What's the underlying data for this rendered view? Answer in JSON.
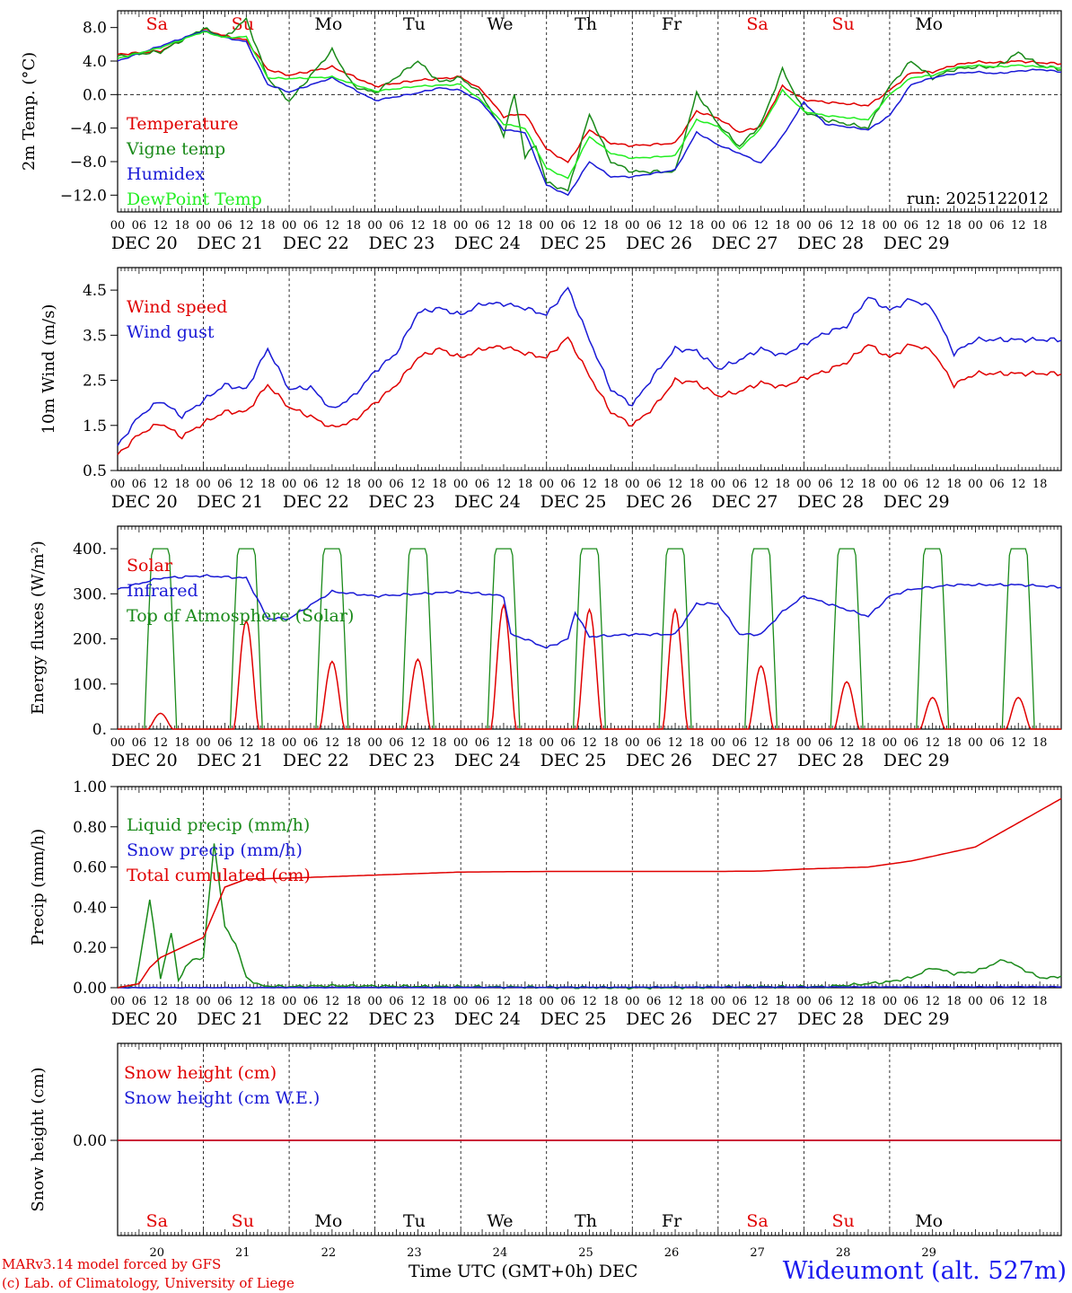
{
  "days": {
    "weekdays": [
      "Sa",
      "Su",
      "Mo",
      "Tu",
      "We",
      "Th",
      "Fr",
      "Sa",
      "Su",
      "Mo"
    ],
    "weekday_colors": [
      "#e00000",
      "#e00000",
      "#000000",
      "#000000",
      "#000000",
      "#000000",
      "#000000",
      "#e00000",
      "#e00000",
      "#000000"
    ],
    "dates": [
      "DEC 20",
      "DEC 21",
      "DEC 22",
      "DEC 23",
      "DEC 24",
      "DEC 25",
      "DEC 26",
      "DEC 27",
      "DEC 28",
      "DEC 29"
    ],
    "day_numbers": [
      "20",
      "21",
      "22",
      "23",
      "24",
      "25",
      "26",
      "27",
      "28",
      "29"
    ],
    "hour_ticks": [
      "00",
      "06",
      "12",
      "18"
    ],
    "final_tick": "00"
  },
  "footer": {
    "credit_line1": "MARv3.14 model forced by GFS",
    "credit_line2": "(c) Lab. of Climatology, University of Liege",
    "x_axis_title": "Time UTC (GMT+0h) DEC",
    "station": "Wideumont (alt. 527m)"
  },
  "colors": {
    "red": "#e00000",
    "green": "#1a8a1a",
    "blue": "#1a1ad6",
    "lightgreen": "#22ee22",
    "black": "#000000"
  },
  "chart_data": [
    {
      "type": "line",
      "id": "temperature",
      "ylabel": "2m Temp. (°C)",
      "ylim": [
        -14,
        10
      ],
      "yticks": [
        -12,
        -8,
        -4,
        0,
        4,
        8
      ],
      "ytick_labels": [
        "−12.0",
        "−8.0",
        "−4.0",
        "0.0",
        "4.0",
        "8.0"
      ],
      "zero_line": true,
      "run_label": "run: 2025122012",
      "x_unit": "hours since DEC 20 00 UTC",
      "series": [
        {
          "name": "Temperature",
          "color": "red",
          "x": [
            0,
            12,
            24,
            30,
            36,
            42,
            48,
            60,
            72,
            84,
            96,
            102,
            108,
            114,
            120,
            126,
            132,
            138,
            144,
            156,
            162,
            168,
            174,
            180,
            186,
            192,
            198,
            210,
            216,
            222,
            228,
            234,
            240,
            246,
            252,
            258,
            264
          ],
          "values": [
            4.8,
            5.2,
            7.8,
            7.0,
            6.5,
            3.0,
            2.3,
            3.3,
            1.0,
            1.7,
            2.1,
            0.5,
            -2.6,
            -2.3,
            -6.5,
            -8.1,
            -4.2,
            -5.8,
            -6.1,
            -5.8,
            -2.0,
            -2.8,
            -4.5,
            -3.8,
            1.0,
            -0.6,
            -0.9,
            -1.3,
            0.5,
            2.6,
            2.7,
            3.5,
            3.9,
            3.8,
            4.0,
            3.8,
            3.7
          ]
        },
        {
          "name": "Vigne temp",
          "color": "green",
          "x": [
            0,
            12,
            24,
            30,
            36,
            42,
            48,
            60,
            66,
            72,
            84,
            90,
            96,
            102,
            108,
            111,
            114,
            117,
            120,
            126,
            132,
            138,
            144,
            156,
            162,
            168,
            174,
            180,
            186,
            192,
            198,
            210,
            216,
            222,
            228,
            234,
            240,
            246,
            252,
            258,
            264
          ],
          "values": [
            4.6,
            5.1,
            7.9,
            6.8,
            9.0,
            2.0,
            -0.8,
            5.3,
            1.0,
            0.2,
            4.0,
            1.5,
            2.0,
            0.0,
            -4.8,
            0.0,
            -7.4,
            -6.0,
            -10.5,
            -11.5,
            -2.3,
            -8.0,
            -9.2,
            -9.2,
            0.2,
            -3.5,
            -6.2,
            -3.5,
            3.0,
            -2.0,
            -3.0,
            -4.0,
            1.0,
            4.0,
            2.0,
            3.0,
            3.3,
            3.3,
            5.0,
            3.5,
            3.0
          ]
        },
        {
          "name": "Humidex",
          "color": "blue",
          "x": [
            0,
            12,
            24,
            30,
            36,
            42,
            48,
            60,
            72,
            84,
            90,
            96,
            102,
            108,
            114,
            120,
            126,
            132,
            138,
            144,
            156,
            162,
            168,
            174,
            180,
            186,
            192,
            198,
            210,
            216,
            222,
            228,
            234,
            240,
            246,
            252,
            258,
            264
          ],
          "values": [
            4.0,
            5.8,
            7.6,
            6.8,
            6.3,
            1.2,
            0.3,
            2.0,
            -0.7,
            0.2,
            0.8,
            0.5,
            -1.0,
            -4.2,
            -4.5,
            -10.8,
            -12.0,
            -8.0,
            -9.8,
            -9.8,
            -9.0,
            -4.5,
            -6.0,
            -7.0,
            -8.2,
            -5.0,
            -0.9,
            -3.5,
            -4.2,
            -2.5,
            1.2,
            2.0,
            2.5,
            2.7,
            2.5,
            2.8,
            3.0,
            2.7
          ]
        },
        {
          "name": "DewPoint Temp",
          "color": "lightgreen",
          "x": [
            0,
            12,
            24,
            30,
            36,
            42,
            48,
            60,
            72,
            84,
            96,
            102,
            108,
            114,
            120,
            126,
            132,
            138,
            144,
            156,
            162,
            168,
            174,
            180,
            186,
            192,
            198,
            210,
            216,
            222,
            228,
            234,
            240,
            246,
            252,
            258,
            264
          ],
          "values": [
            4.3,
            5.6,
            7.5,
            6.8,
            6.9,
            2.0,
            1.9,
            2.1,
            0.4,
            1.0,
            1.2,
            -0.8,
            -3.5,
            -4.0,
            -8.8,
            -10.0,
            -5.0,
            -7.0,
            -7.6,
            -7.3,
            -3.0,
            -3.8,
            -6.5,
            -4.0,
            0.5,
            -2.0,
            -2.5,
            -3.0,
            0.0,
            2.0,
            2.3,
            3.2,
            3.5,
            3.3,
            3.5,
            3.3,
            3.2
          ]
        }
      ]
    },
    {
      "type": "line",
      "id": "wind",
      "ylabel": "10m Wind (m/s)",
      "ylim": [
        0.5,
        5.0
      ],
      "yticks": [
        0.5,
        1.5,
        2.5,
        3.5,
        4.5
      ],
      "ytick_labels": [
        "0.5",
        "1.5",
        "2.5",
        "3.5",
        "4.5"
      ],
      "x_unit": "hours since DEC 20 00 UTC",
      "series": [
        {
          "name": "Wind speed",
          "color": "red",
          "x": [
            0,
            6,
            12,
            18,
            24,
            30,
            36,
            42,
            48,
            54,
            60,
            66,
            72,
            78,
            84,
            90,
            96,
            102,
            108,
            114,
            120,
            126,
            132,
            138,
            144,
            150,
            156,
            162,
            168,
            174,
            180,
            186,
            192,
            198,
            204,
            210,
            216,
            222,
            228,
            234,
            240,
            246,
            252,
            258,
            264
          ],
          "values": [
            0.85,
            1.3,
            1.55,
            1.25,
            1.55,
            1.8,
            1.8,
            2.4,
            1.9,
            1.7,
            1.45,
            1.6,
            2.0,
            2.4,
            3.0,
            3.2,
            3.0,
            3.2,
            3.25,
            3.1,
            3.0,
            3.45,
            2.6,
            1.8,
            1.5,
            1.9,
            2.5,
            2.45,
            2.15,
            2.25,
            2.45,
            2.35,
            2.55,
            2.7,
            2.9,
            3.3,
            3.0,
            3.3,
            3.15,
            2.4,
            2.65,
            2.65,
            2.65,
            2.65,
            2.65
          ]
        },
        {
          "name": "Wind gust",
          "color": "blue",
          "x": [
            0,
            6,
            12,
            18,
            24,
            30,
            36,
            42,
            48,
            54,
            60,
            66,
            72,
            78,
            84,
            90,
            96,
            102,
            108,
            114,
            120,
            126,
            132,
            138,
            144,
            150,
            156,
            162,
            168,
            174,
            180,
            186,
            192,
            198,
            204,
            210,
            216,
            222,
            228,
            234,
            240,
            246,
            252,
            258,
            264
          ],
          "values": [
            1.05,
            1.7,
            2.05,
            1.7,
            2.05,
            2.4,
            2.3,
            3.2,
            2.3,
            2.35,
            1.85,
            2.15,
            2.7,
            3.1,
            4.0,
            4.1,
            3.95,
            4.2,
            4.2,
            4.1,
            3.95,
            4.55,
            3.4,
            2.3,
            1.95,
            2.6,
            3.2,
            3.15,
            2.75,
            2.95,
            3.2,
            3.05,
            3.3,
            3.55,
            3.7,
            4.35,
            4.05,
            4.3,
            4.1,
            3.1,
            3.4,
            3.4,
            3.4,
            3.4,
            3.4
          ]
        }
      ]
    },
    {
      "type": "line",
      "id": "energy",
      "ylabel": "Energy fluxes (W/m²)",
      "ylim": [
        0,
        450
      ],
      "yticks": [
        0,
        100,
        200,
        300,
        400
      ],
      "ytick_labels": [
        "0.",
        "100.",
        "200.",
        "300.",
        "400."
      ],
      "x_unit": "hours since DEC 20 00 UTC",
      "solar_peaks": [
        35,
        240,
        150,
        155,
        275,
        265,
        265,
        140,
        105,
        70
      ],
      "toa_peak": 400,
      "series": [
        {
          "name": "Solar",
          "color": "red"
        },
        {
          "name": "Infrared",
          "color": "blue",
          "x": [
            0,
            12,
            24,
            36,
            42,
            48,
            60,
            72,
            84,
            96,
            108,
            110,
            114,
            120,
            126,
            128,
            132,
            144,
            156,
            162,
            168,
            174,
            180,
            186,
            192,
            198,
            210,
            216,
            222,
            228,
            234,
            240,
            252,
            264
          ],
          "values": [
            310,
            335,
            340,
            335,
            245,
            245,
            305,
            295,
            300,
            305,
            295,
            210,
            200,
            180,
            200,
            260,
            205,
            210,
            210,
            278,
            278,
            210,
            210,
            260,
            295,
            280,
            250,
            295,
            310,
            315,
            320,
            320,
            320,
            315
          ]
        },
        {
          "name": "Top of Atmosphere (Solar)",
          "color": "green"
        }
      ]
    },
    {
      "type": "line",
      "id": "precip",
      "ylabel": "Precip (mm/h)",
      "ylim": [
        0,
        1.0
      ],
      "yticks": [
        0,
        0.2,
        0.4,
        0.6,
        0.8,
        1.0
      ],
      "ytick_labels": [
        "0.00",
        "0.20",
        "0.40",
        "0.60",
        "0.80",
        "1.00"
      ],
      "x_unit": "hours since DEC 20 00 UTC",
      "series": [
        {
          "name": "Liquid precip (mm/h)",
          "color": "green",
          "x": [
            0,
            5,
            9,
            12,
            15,
            17,
            19,
            21,
            24,
            27,
            30,
            33,
            36,
            40,
            48,
            60,
            96,
            144,
            180,
            198,
            210,
            216,
            222,
            228,
            234,
            240,
            248,
            258,
            262,
            264
          ],
          "values": [
            0,
            0.01,
            0.44,
            0.05,
            0.27,
            0.04,
            0.1,
            0.14,
            0.15,
            0.72,
            0.3,
            0.22,
            0.05,
            0.01,
            0.005,
            0.01,
            0.005,
            0.0,
            0.005,
            0.005,
            0.02,
            0.03,
            0.05,
            0.1,
            0.07,
            0.08,
            0.14,
            0.05,
            0.05,
            0.06
          ]
        },
        {
          "name": "Snow precip (mm/h)",
          "color": "blue",
          "x": [
            0,
            264
          ],
          "values": [
            0,
            0.005
          ]
        },
        {
          "name": "Total cumulated (cm)",
          "color": "red",
          "x": [
            0,
            6,
            9,
            12,
            18,
            24,
            30,
            36,
            48,
            72,
            96,
            120,
            144,
            168,
            180,
            192,
            210,
            222,
            240,
            252,
            264
          ],
          "values": [
            0,
            0.02,
            0.1,
            0.15,
            0.2,
            0.25,
            0.5,
            0.54,
            0.545,
            0.56,
            0.575,
            0.578,
            0.578,
            0.578,
            0.58,
            0.59,
            0.6,
            0.63,
            0.7,
            0.82,
            0.94
          ]
        }
      ]
    },
    {
      "type": "line",
      "id": "snow",
      "ylabel": "Snow height (cm)",
      "yticks": [
        0
      ],
      "ytick_labels": [
        "0.00"
      ],
      "x_unit": "hours since DEC 20 00 UTC",
      "series": [
        {
          "name": "Snow height (cm)",
          "color": "red",
          "x": [
            0,
            264
          ],
          "values": [
            0,
            0
          ]
        },
        {
          "name": "Snow height (cm W.E.)",
          "color": "blue",
          "x": [
            0,
            264
          ],
          "values": [
            0,
            0
          ]
        }
      ]
    }
  ]
}
